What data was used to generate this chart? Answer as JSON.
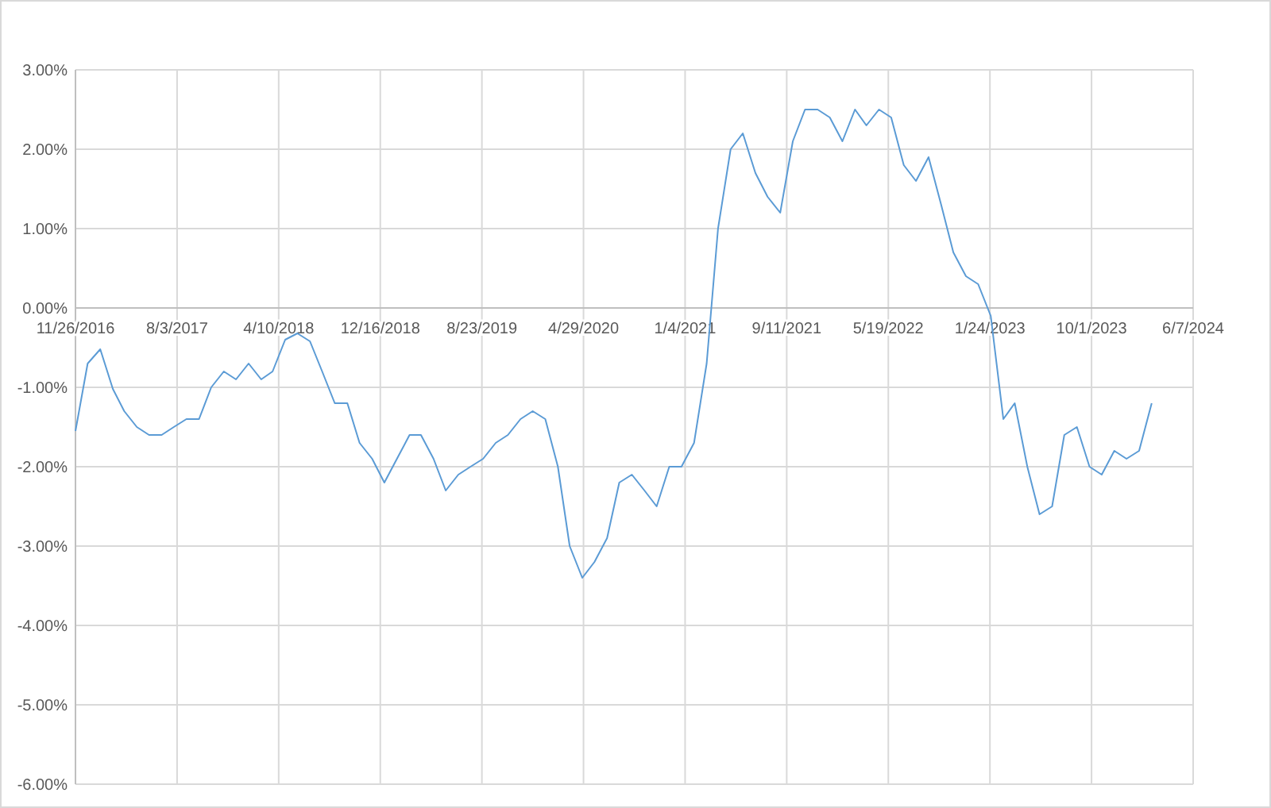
{
  "chart_data": {
    "type": "line",
    "x": [
      "2016-11-26",
      "2016-12-26",
      "2017-01-26",
      "2017-02-26",
      "2017-03-26",
      "2017-04-26",
      "2017-05-26",
      "2017-06-26",
      "2017-07-26",
      "2017-08-26",
      "2017-09-26",
      "2017-10-26",
      "2017-11-26",
      "2017-12-26",
      "2018-01-26",
      "2018-02-26",
      "2018-03-26",
      "2018-04-26",
      "2018-05-26",
      "2018-06-26",
      "2018-07-26",
      "2018-08-26",
      "2018-09-26",
      "2018-10-26",
      "2018-11-26",
      "2018-12-26",
      "2019-01-26",
      "2019-02-26",
      "2019-03-26",
      "2019-04-26",
      "2019-05-26",
      "2019-06-26",
      "2019-07-26",
      "2019-08-26",
      "2019-09-26",
      "2019-10-26",
      "2019-11-26",
      "2019-12-26",
      "2020-01-26",
      "2020-02-26",
      "2020-03-26",
      "2020-04-26",
      "2020-05-26",
      "2020-06-26",
      "2020-07-26",
      "2020-08-26",
      "2020-09-26",
      "2020-10-26",
      "2020-11-26",
      "2020-12-26",
      "2021-01-26",
      "2021-02-26",
      "2021-03-26",
      "2021-04-26",
      "2021-05-26",
      "2021-06-26",
      "2021-07-26",
      "2021-08-26",
      "2021-09-26",
      "2021-10-26",
      "2021-11-26",
      "2021-12-26",
      "2022-01-26",
      "2022-02-26",
      "2022-03-26",
      "2022-04-26",
      "2022-05-26",
      "2022-06-26",
      "2022-07-26",
      "2022-08-26",
      "2022-09-26",
      "2022-10-26",
      "2022-11-26",
      "2022-12-26",
      "2023-01-26",
      "2023-02-26",
      "2023-03-26",
      "2023-04-26",
      "2023-05-26",
      "2023-06-26",
      "2023-07-26",
      "2023-08-26",
      "2023-09-26",
      "2023-10-26",
      "2023-11-26",
      "2023-12-26",
      "2024-01-26",
      "2024-02-26"
    ],
    "series": [
      {
        "color": "#5b9bd5",
        "values": [
          -1.55,
          -0.7,
          -0.52,
          -1.02,
          -1.3,
          -1.5,
          -1.6,
          -1.6,
          -1.5,
          -1.4,
          -1.4,
          -1.0,
          -0.8,
          -0.9,
          -0.7,
          -0.9,
          -0.8,
          -0.4,
          -0.32,
          -0.42,
          -0.8,
          -1.2,
          -1.2,
          -1.7,
          -1.9,
          -2.2,
          -1.9,
          -1.6,
          -1.6,
          -1.9,
          -2.3,
          -2.1,
          -2.0,
          -1.9,
          -1.7,
          -1.6,
          -1.4,
          -1.3,
          -1.4,
          -2.0,
          -3.0,
          -3.4,
          -3.2,
          -2.9,
          -2.2,
          -2.1,
          -2.3,
          -2.5,
          -2.0,
          -2.0,
          -1.7,
          -0.7,
          1.0,
          2.0,
          2.2,
          1.7,
          1.4,
          1.2,
          2.1,
          2.5,
          2.5,
          2.4,
          2.1,
          2.5,
          2.3,
          2.5,
          2.4,
          1.8,
          1.6,
          1.9,
          1.3,
          0.7,
          0.4,
          0.3,
          -0.1,
          -1.4,
          -1.2,
          -2.0,
          -2.6,
          -2.5,
          -1.6,
          -1.5,
          -2.0,
          -2.1,
          -1.8,
          -1.9,
          -1.8,
          -1.2
        ]
      }
    ],
    "xlim": [
      "2016-11-26",
      "2024-06-07"
    ],
    "xticks": [
      {
        "value": "2016-11-26",
        "label": "11/26/2016"
      },
      {
        "value": "2017-08-03",
        "label": "8/3/2017"
      },
      {
        "value": "2018-04-10",
        "label": "4/10/2018"
      },
      {
        "value": "2018-12-16",
        "label": "12/16/2018"
      },
      {
        "value": "2019-08-23",
        "label": "8/23/2019"
      },
      {
        "value": "2020-04-29",
        "label": "4/29/2020"
      },
      {
        "value": "2021-01-04",
        "label": "1/4/2021"
      },
      {
        "value": "2021-09-11",
        "label": "9/11/2021"
      },
      {
        "value": "2022-05-19",
        "label": "5/19/2022"
      },
      {
        "value": "2023-01-24",
        "label": "1/24/2023"
      },
      {
        "value": "2023-10-01",
        "label": "10/1/2023"
      },
      {
        "value": "2024-06-07",
        "label": "6/7/2024"
      }
    ],
    "ylim": [
      -6,
      3
    ],
    "yticks": [
      {
        "value": 3,
        "label": "3.00%"
      },
      {
        "value": 2,
        "label": "2.00%"
      },
      {
        "value": 1,
        "label": "1.00%"
      },
      {
        "value": 0,
        "label": "0.00%"
      },
      {
        "value": -1,
        "label": "-1.00%"
      },
      {
        "value": -2,
        "label": "-2.00%"
      },
      {
        "value": -3,
        "label": "-3.00%"
      },
      {
        "value": -4,
        "label": "-4.00%"
      },
      {
        "value": -5,
        "label": "-5.00%"
      },
      {
        "value": -6,
        "label": "-6.00%"
      }
    ],
    "grid": true,
    "marker": "none",
    "line_style": "solid"
  }
}
